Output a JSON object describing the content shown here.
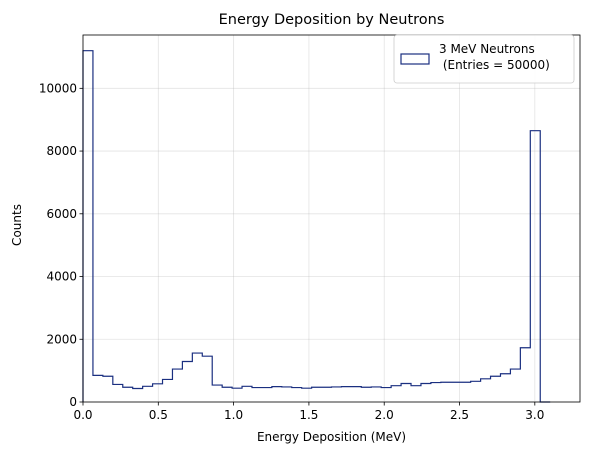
{
  "chart_data": {
    "type": "histogram",
    "title": "Energy Deposition by Neutrons",
    "xlabel": "Energy Deposition (MeV)",
    "ylabel": "Counts",
    "xlim": [
      0.0,
      3.3
    ],
    "ylim": [
      0,
      11700
    ],
    "xticks": [
      "0.0",
      "0.5",
      "1.0",
      "1.5",
      "2.0",
      "2.5",
      "3.0"
    ],
    "yticks": [
      "0",
      "2000",
      "4000",
      "6000",
      "8000",
      "10000"
    ],
    "grid": true,
    "legend": {
      "position": "top-right",
      "entries": [
        "3 MeV Neutrons\n (Entries = 50000)"
      ]
    },
    "series": [
      {
        "name": "3 MeV Neutrons\n (Entries = 50000)",
        "color": "#1a2f80",
        "histtype": "step",
        "bin_edges": [
          0.0,
          0.066,
          0.132,
          0.198,
          0.264,
          0.33,
          0.396,
          0.462,
          0.528,
          0.594,
          0.66,
          0.726,
          0.792,
          0.858,
          0.924,
          0.99,
          1.056,
          1.122,
          1.188,
          1.254,
          1.32,
          1.386,
          1.452,
          1.518,
          1.584,
          1.65,
          1.716,
          1.782,
          1.848,
          1.914,
          1.98,
          2.046,
          2.112,
          2.178,
          2.244,
          2.31,
          2.376,
          2.442,
          2.508,
          2.574,
          2.64,
          2.706,
          2.772,
          2.838,
          2.904,
          2.97,
          3.036,
          3.102
        ],
        "counts": [
          11200,
          850,
          820,
          560,
          470,
          430,
          500,
          580,
          720,
          1050,
          1290,
          1560,
          1460,
          540,
          470,
          440,
          500,
          460,
          460,
          490,
          480,
          460,
          440,
          470,
          470,
          480,
          490,
          490,
          470,
          480,
          460,
          520,
          590,
          520,
          590,
          620,
          630,
          630,
          630,
          660,
          740,
          820,
          900,
          1050,
          1730,
          8650,
          0
        ]
      }
    ]
  }
}
